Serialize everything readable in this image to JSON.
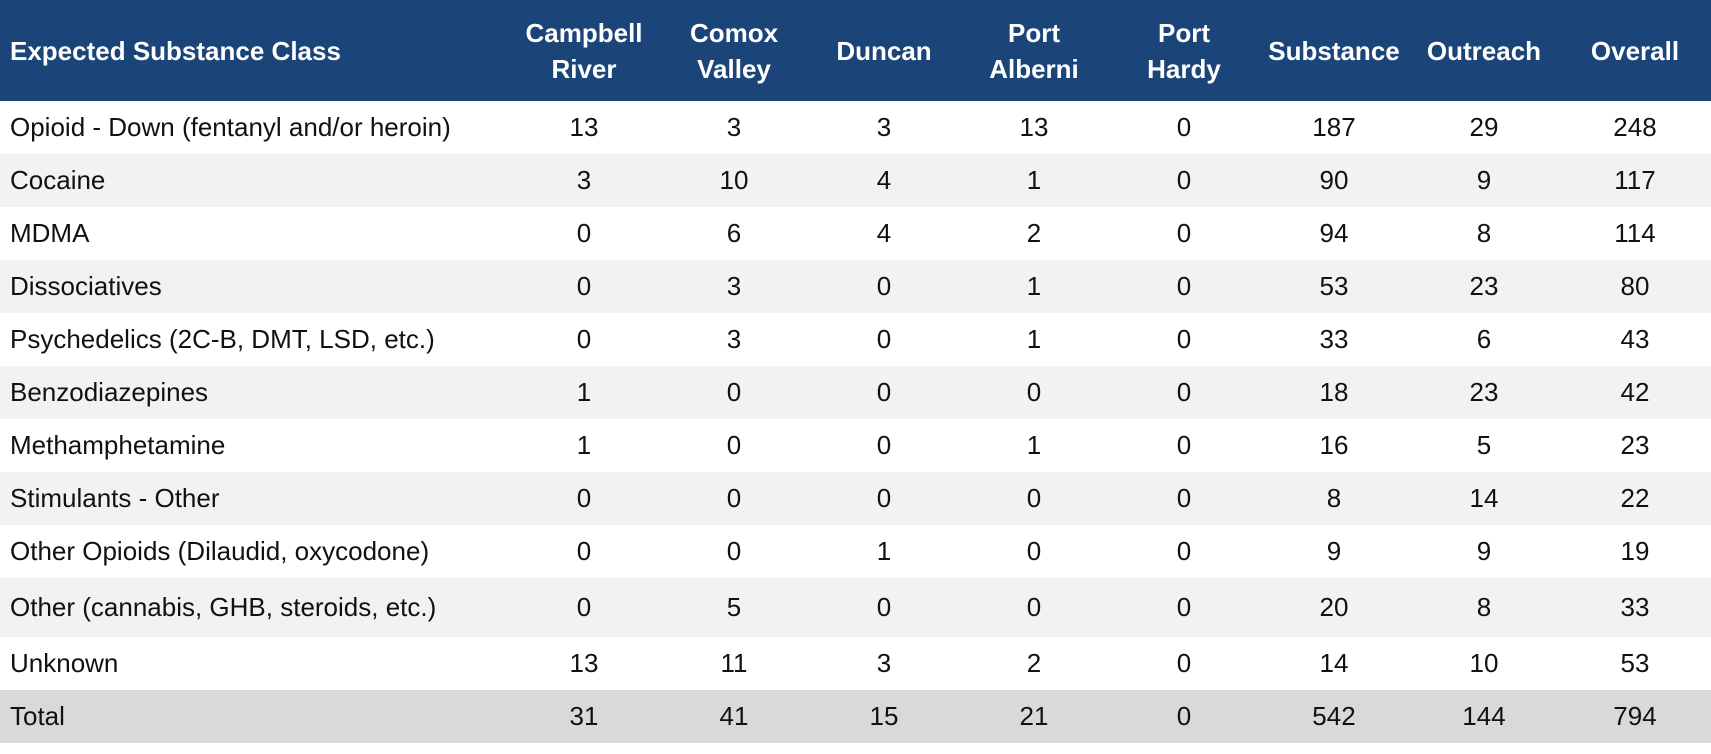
{
  "chart_data": {
    "type": "table",
    "columns": [
      "Expected Substance Class",
      "Campbell\nRiver",
      "Comox\nValley",
      "Duncan",
      "Port\nAlberni",
      "Port\nHardy",
      "Substance",
      "Outreach",
      "Overall"
    ],
    "rows": [
      {
        "label": "Opioid - Down (fentanyl and/or heroin)",
        "values": [
          13,
          3,
          3,
          13,
          0,
          187,
          29,
          248
        ]
      },
      {
        "label": "Cocaine",
        "values": [
          3,
          10,
          4,
          1,
          0,
          90,
          9,
          117
        ]
      },
      {
        "label": "MDMA",
        "values": [
          0,
          6,
          4,
          2,
          0,
          94,
          8,
          114
        ]
      },
      {
        "label": "Dissociatives",
        "values": [
          0,
          3,
          0,
          1,
          0,
          53,
          23,
          80
        ]
      },
      {
        "label": "Psychedelics (2C-B, DMT, LSD, etc.)",
        "values": [
          0,
          3,
          0,
          1,
          0,
          33,
          6,
          43
        ]
      },
      {
        "label": "Benzodiazepines",
        "values": [
          1,
          0,
          0,
          0,
          0,
          18,
          23,
          42
        ]
      },
      {
        "label": "Methamphetamine",
        "values": [
          1,
          0,
          0,
          1,
          0,
          16,
          5,
          23
        ]
      },
      {
        "label": "Stimulants - Other",
        "values": [
          0,
          0,
          0,
          0,
          0,
          8,
          14,
          22
        ]
      },
      {
        "label": "Other Opioids (Dilaudid, oxycodone)",
        "values": [
          0,
          0,
          1,
          0,
          0,
          9,
          9,
          19
        ]
      },
      {
        "label": "Other (cannabis, GHB, steroids, etc.)",
        "values": [
          0,
          5,
          0,
          0,
          0,
          20,
          8,
          33
        ]
      },
      {
        "label": "Unknown",
        "values": [
          13,
          11,
          3,
          2,
          0,
          14,
          10,
          53
        ]
      }
    ],
    "total": {
      "label": "Total",
      "values": [
        31,
        41,
        15,
        21,
        0,
        542,
        144,
        794
      ]
    }
  },
  "colors": {
    "header_bg": "#1b4479",
    "header_text": "#ffffff",
    "stripe": "#f2f2f2",
    "total_bg": "#d9d9d9"
  }
}
